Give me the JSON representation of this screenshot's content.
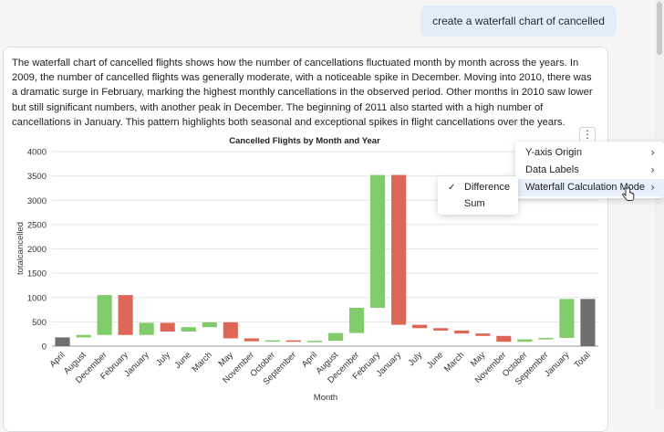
{
  "user_message": "create a waterfall chart of cancelled flights",
  "answer_text": "The waterfall chart of cancelled flights shows how the number of cancellations fluctuated month by month across the years. In 2009, the number of cancelled flights was generally moderate, with a noticeable spike in December. Moving into 2010, there was a dramatic surge in February, marking the highest monthly cancellations in the observed period. Other months in 2010 saw lower but still significant numbers, with another peak in December. The beginning of 2011 also started with a high number of cancellations in January. This pattern highlights both seasonal and exceptional spikes in flight cancellations over the years.",
  "chart_menu": {
    "kebab_icon": "⋮",
    "items": [
      {
        "label": "Y-axis Origin"
      },
      {
        "label": "Data Labels"
      },
      {
        "label": "Waterfall Calculation Mode"
      }
    ],
    "submenu": [
      {
        "label": "Difference",
        "checked": true
      },
      {
        "label": "Sum",
        "checked": false
      }
    ]
  },
  "colors": {
    "increase": "#80cc6a",
    "decrease": "#dd6756",
    "total": "#6f6f6f",
    "start": "#6f6f6f"
  },
  "chart_data": {
    "type": "waterfall",
    "title": "Cancelled Flights by Month and Year",
    "xlabel": "Month",
    "ylabel": "totalcancelled",
    "ylim": [
      0,
      4000
    ],
    "yticks": [
      0,
      500,
      1000,
      1500,
      2000,
      2500,
      3000,
      3500,
      4000
    ],
    "grid": true,
    "bars": [
      {
        "label": "April",
        "start": 0,
        "end": 180,
        "kind": "start"
      },
      {
        "label": "August",
        "start": 180,
        "end": 230,
        "kind": "increase"
      },
      {
        "label": "December",
        "start": 230,
        "end": 1050,
        "kind": "increase"
      },
      {
        "label": "February",
        "start": 1050,
        "end": 230,
        "kind": "decrease"
      },
      {
        "label": "January",
        "start": 230,
        "end": 480,
        "kind": "increase"
      },
      {
        "label": "July",
        "start": 480,
        "end": 300,
        "kind": "decrease"
      },
      {
        "label": "June",
        "start": 300,
        "end": 390,
        "kind": "increase"
      },
      {
        "label": "March",
        "start": 390,
        "end": 490,
        "kind": "increase"
      },
      {
        "label": "May",
        "start": 490,
        "end": 160,
        "kind": "decrease"
      },
      {
        "label": "November",
        "start": 160,
        "end": 100,
        "kind": "decrease"
      },
      {
        "label": "October",
        "start": 100,
        "end": 120,
        "kind": "increase"
      },
      {
        "label": "September",
        "start": 120,
        "end": 90,
        "kind": "decrease"
      },
      {
        "label": "April",
        "start": 90,
        "end": 110,
        "kind": "increase"
      },
      {
        "label": "August",
        "start": 110,
        "end": 270,
        "kind": "increase"
      },
      {
        "label": "December",
        "start": 270,
        "end": 790,
        "kind": "increase"
      },
      {
        "label": "February",
        "start": 790,
        "end": 3520,
        "kind": "increase"
      },
      {
        "label": "January",
        "start": 3520,
        "end": 440,
        "kind": "decrease"
      },
      {
        "label": "July",
        "start": 440,
        "end": 370,
        "kind": "decrease"
      },
      {
        "label": "June",
        "start": 370,
        "end": 320,
        "kind": "decrease"
      },
      {
        "label": "March",
        "start": 320,
        "end": 260,
        "kind": "decrease"
      },
      {
        "label": "May",
        "start": 260,
        "end": 210,
        "kind": "decrease"
      },
      {
        "label": "November",
        "start": 210,
        "end": 90,
        "kind": "decrease"
      },
      {
        "label": "October",
        "start": 90,
        "end": 140,
        "kind": "increase"
      },
      {
        "label": "September",
        "start": 140,
        "end": 170,
        "kind": "increase"
      },
      {
        "label": "January",
        "start": 170,
        "end": 970,
        "kind": "increase"
      },
      {
        "label": "Total",
        "start": 0,
        "end": 970,
        "kind": "total"
      }
    ]
  }
}
